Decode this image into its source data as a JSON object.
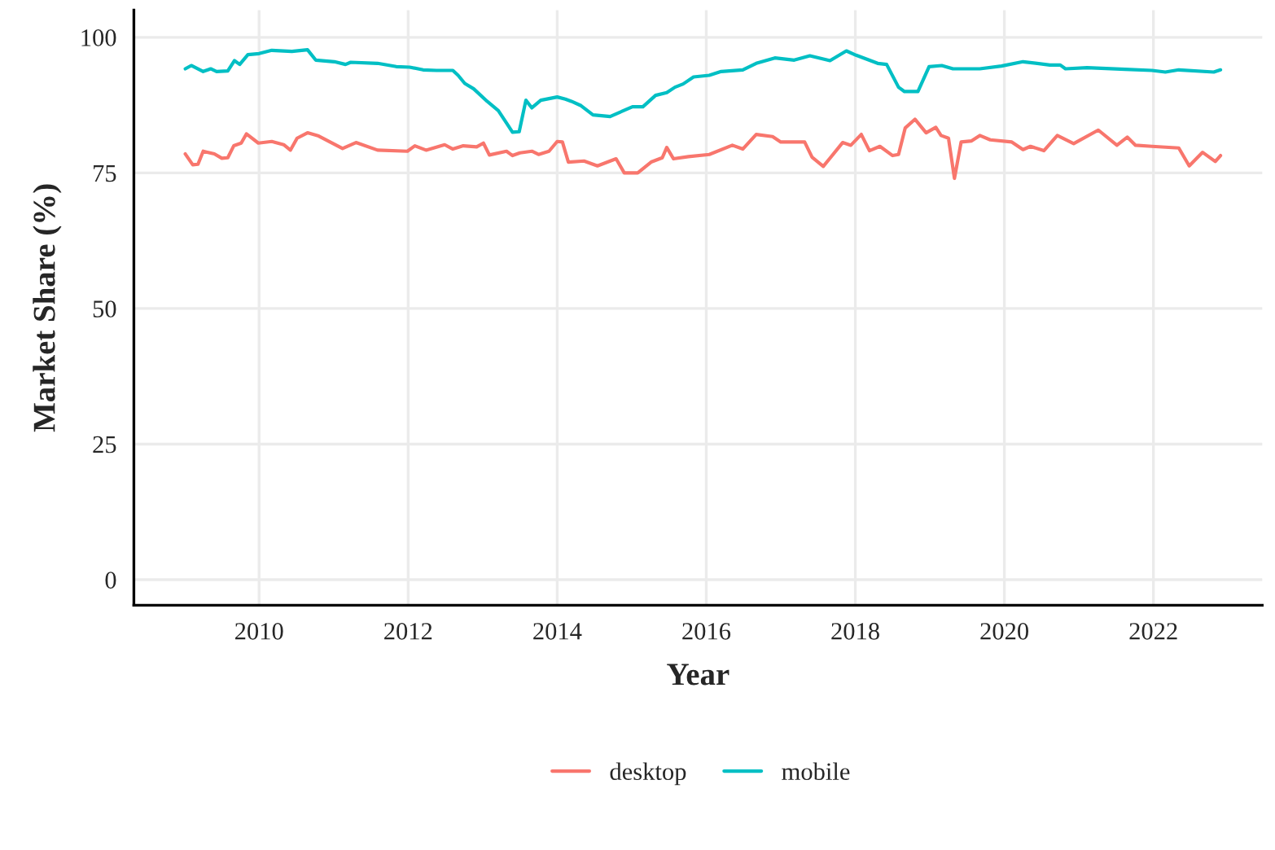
{
  "chart_data": {
    "type": "line",
    "xlabel": "Year",
    "ylabel": "Market Share (%)",
    "xlim": [
      2008.32,
      2023.46
    ],
    "ylim": [
      -4.7,
      105
    ],
    "xticks": [
      2010,
      2012,
      2014,
      2016,
      2018,
      2020,
      2022
    ],
    "yticks": [
      0,
      25,
      50,
      75,
      100
    ],
    "grid": true,
    "legend": "bottom",
    "marker": "none",
    "line_style": "solid",
    "series": [
      {
        "name": "desktop",
        "color": "#f8766d",
        "x": [
          2009.01,
          2009.11,
          2009.18,
          2009.25,
          2009.4,
          2009.5,
          2009.58,
          2009.66,
          2009.76,
          2009.83,
          2009.99,
          2010.17,
          2010.33,
          2010.42,
          2010.51,
          2010.65,
          2010.8,
          2011.12,
          2011.3,
          2011.59,
          2011.99,
          2012.09,
          2012.24,
          2012.49,
          2012.6,
          2012.74,
          2012.92,
          2013.01,
          2013.09,
          2013.32,
          2013.4,
          2013.5,
          2013.66,
          2013.75,
          2013.89,
          2014.0,
          2014.07,
          2014.15,
          2014.36,
          2014.54,
          2014.79,
          2014.9,
          2015.08,
          2015.26,
          2015.41,
          2015.47,
          2015.56,
          2015.76,
          2016.04,
          2016.35,
          2016.49,
          2016.67,
          2016.89,
          2017.0,
          2017.18,
          2017.32,
          2017.42,
          2017.57,
          2017.83,
          2017.94,
          2018.08,
          2018.19,
          2018.33,
          2018.5,
          2018.58,
          2018.67,
          2018.8,
          2018.95,
          2019.08,
          2019.15,
          2019.25,
          2019.33,
          2019.42,
          2019.56,
          2019.67,
          2019.81,
          2020.1,
          2020.25,
          2020.35,
          2020.53,
          2020.71,
          2020.93,
          2021.26,
          2021.51,
          2021.65,
          2021.76,
          2021.98,
          2022.34,
          2022.48,
          2022.66,
          2022.83,
          2022.9
        ],
        "values": [
          78.5,
          76.5,
          76.6,
          79.0,
          78.5,
          77.7,
          77.8,
          80.0,
          80.5,
          82.2,
          80.5,
          80.8,
          80.2,
          79.2,
          81.4,
          82.4,
          81.8,
          79.5,
          80.6,
          79.2,
          79.0,
          80.0,
          79.2,
          80.2,
          79.4,
          80.0,
          79.8,
          80.5,
          78.3,
          79.0,
          78.2,
          78.7,
          79.0,
          78.4,
          79.0,
          80.8,
          80.7,
          77.0,
          77.2,
          76.3,
          77.6,
          75.0,
          75.0,
          77.0,
          77.8,
          79.7,
          77.6,
          78.0,
          78.4,
          80.1,
          79.4,
          82.1,
          81.7,
          80.7,
          80.7,
          80.7,
          77.9,
          76.2,
          80.6,
          80.1,
          82.1,
          79.1,
          79.9,
          78.2,
          78.4,
          83.3,
          84.9,
          82.4,
          83.4,
          81.9,
          81.4,
          74.0,
          80.7,
          80.9,
          81.9,
          81.1,
          80.7,
          79.3,
          79.9,
          79.1,
          81.9,
          80.4,
          82.9,
          80.1,
          81.6,
          80.1,
          79.9,
          79.6,
          76.3,
          78.8,
          77.1,
          78.2
        ]
      },
      {
        "name": "mobile",
        "color": "#00bfc4",
        "x": [
          2009.01,
          2009.09,
          2009.25,
          2009.35,
          2009.43,
          2009.58,
          2009.67,
          2009.74,
          2009.85,
          2010.0,
          2010.17,
          2010.44,
          2010.65,
          2010.76,
          2011.01,
          2011.16,
          2011.23,
          2011.59,
          2011.84,
          2012.02,
          2012.2,
          2012.38,
          2012.6,
          2012.67,
          2012.76,
          2012.88,
          2013.06,
          2013.21,
          2013.32,
          2013.4,
          2013.49,
          2013.58,
          2013.66,
          2013.78,
          2014.0,
          2014.11,
          2014.19,
          2014.32,
          2014.48,
          2014.71,
          2015.01,
          2015.15,
          2015.32,
          2015.47,
          2015.58,
          2015.69,
          2015.83,
          2016.04,
          2016.2,
          2016.49,
          2016.67,
          2016.92,
          2017.18,
          2017.39,
          2017.66,
          2017.88,
          2018.01,
          2018.3,
          2018.42,
          2018.58,
          2018.66,
          2018.84,
          2018.99,
          2019.16,
          2019.31,
          2019.67,
          2019.96,
          2020.25,
          2020.61,
          2020.75,
          2020.82,
          2021.11,
          2021.62,
          2021.98,
          2022.16,
          2022.34,
          2022.81,
          2022.9
        ],
        "values": [
          94.2,
          94.8,
          93.7,
          94.2,
          93.7,
          93.8,
          95.7,
          95.0,
          96.8,
          97.0,
          97.6,
          97.4,
          97.7,
          95.8,
          95.5,
          95.0,
          95.4,
          95.2,
          94.6,
          94.5,
          94.0,
          93.9,
          93.9,
          93.0,
          91.5,
          90.5,
          88.2,
          86.5,
          84.2,
          82.5,
          82.6,
          88.4,
          87.0,
          88.4,
          89.0,
          88.6,
          88.2,
          87.4,
          85.7,
          85.4,
          87.2,
          87.2,
          89.3,
          89.8,
          90.8,
          91.4,
          92.7,
          93.0,
          93.7,
          94.0,
          95.2,
          96.2,
          95.8,
          96.6,
          95.7,
          97.5,
          96.7,
          95.2,
          95.0,
          90.8,
          90.0,
          90.0,
          94.6,
          94.8,
          94.2,
          94.2,
          94.7,
          95.5,
          94.9,
          94.9,
          94.2,
          94.4,
          94.1,
          93.9,
          93.6,
          94.0,
          93.6,
          94.0
        ]
      }
    ]
  }
}
